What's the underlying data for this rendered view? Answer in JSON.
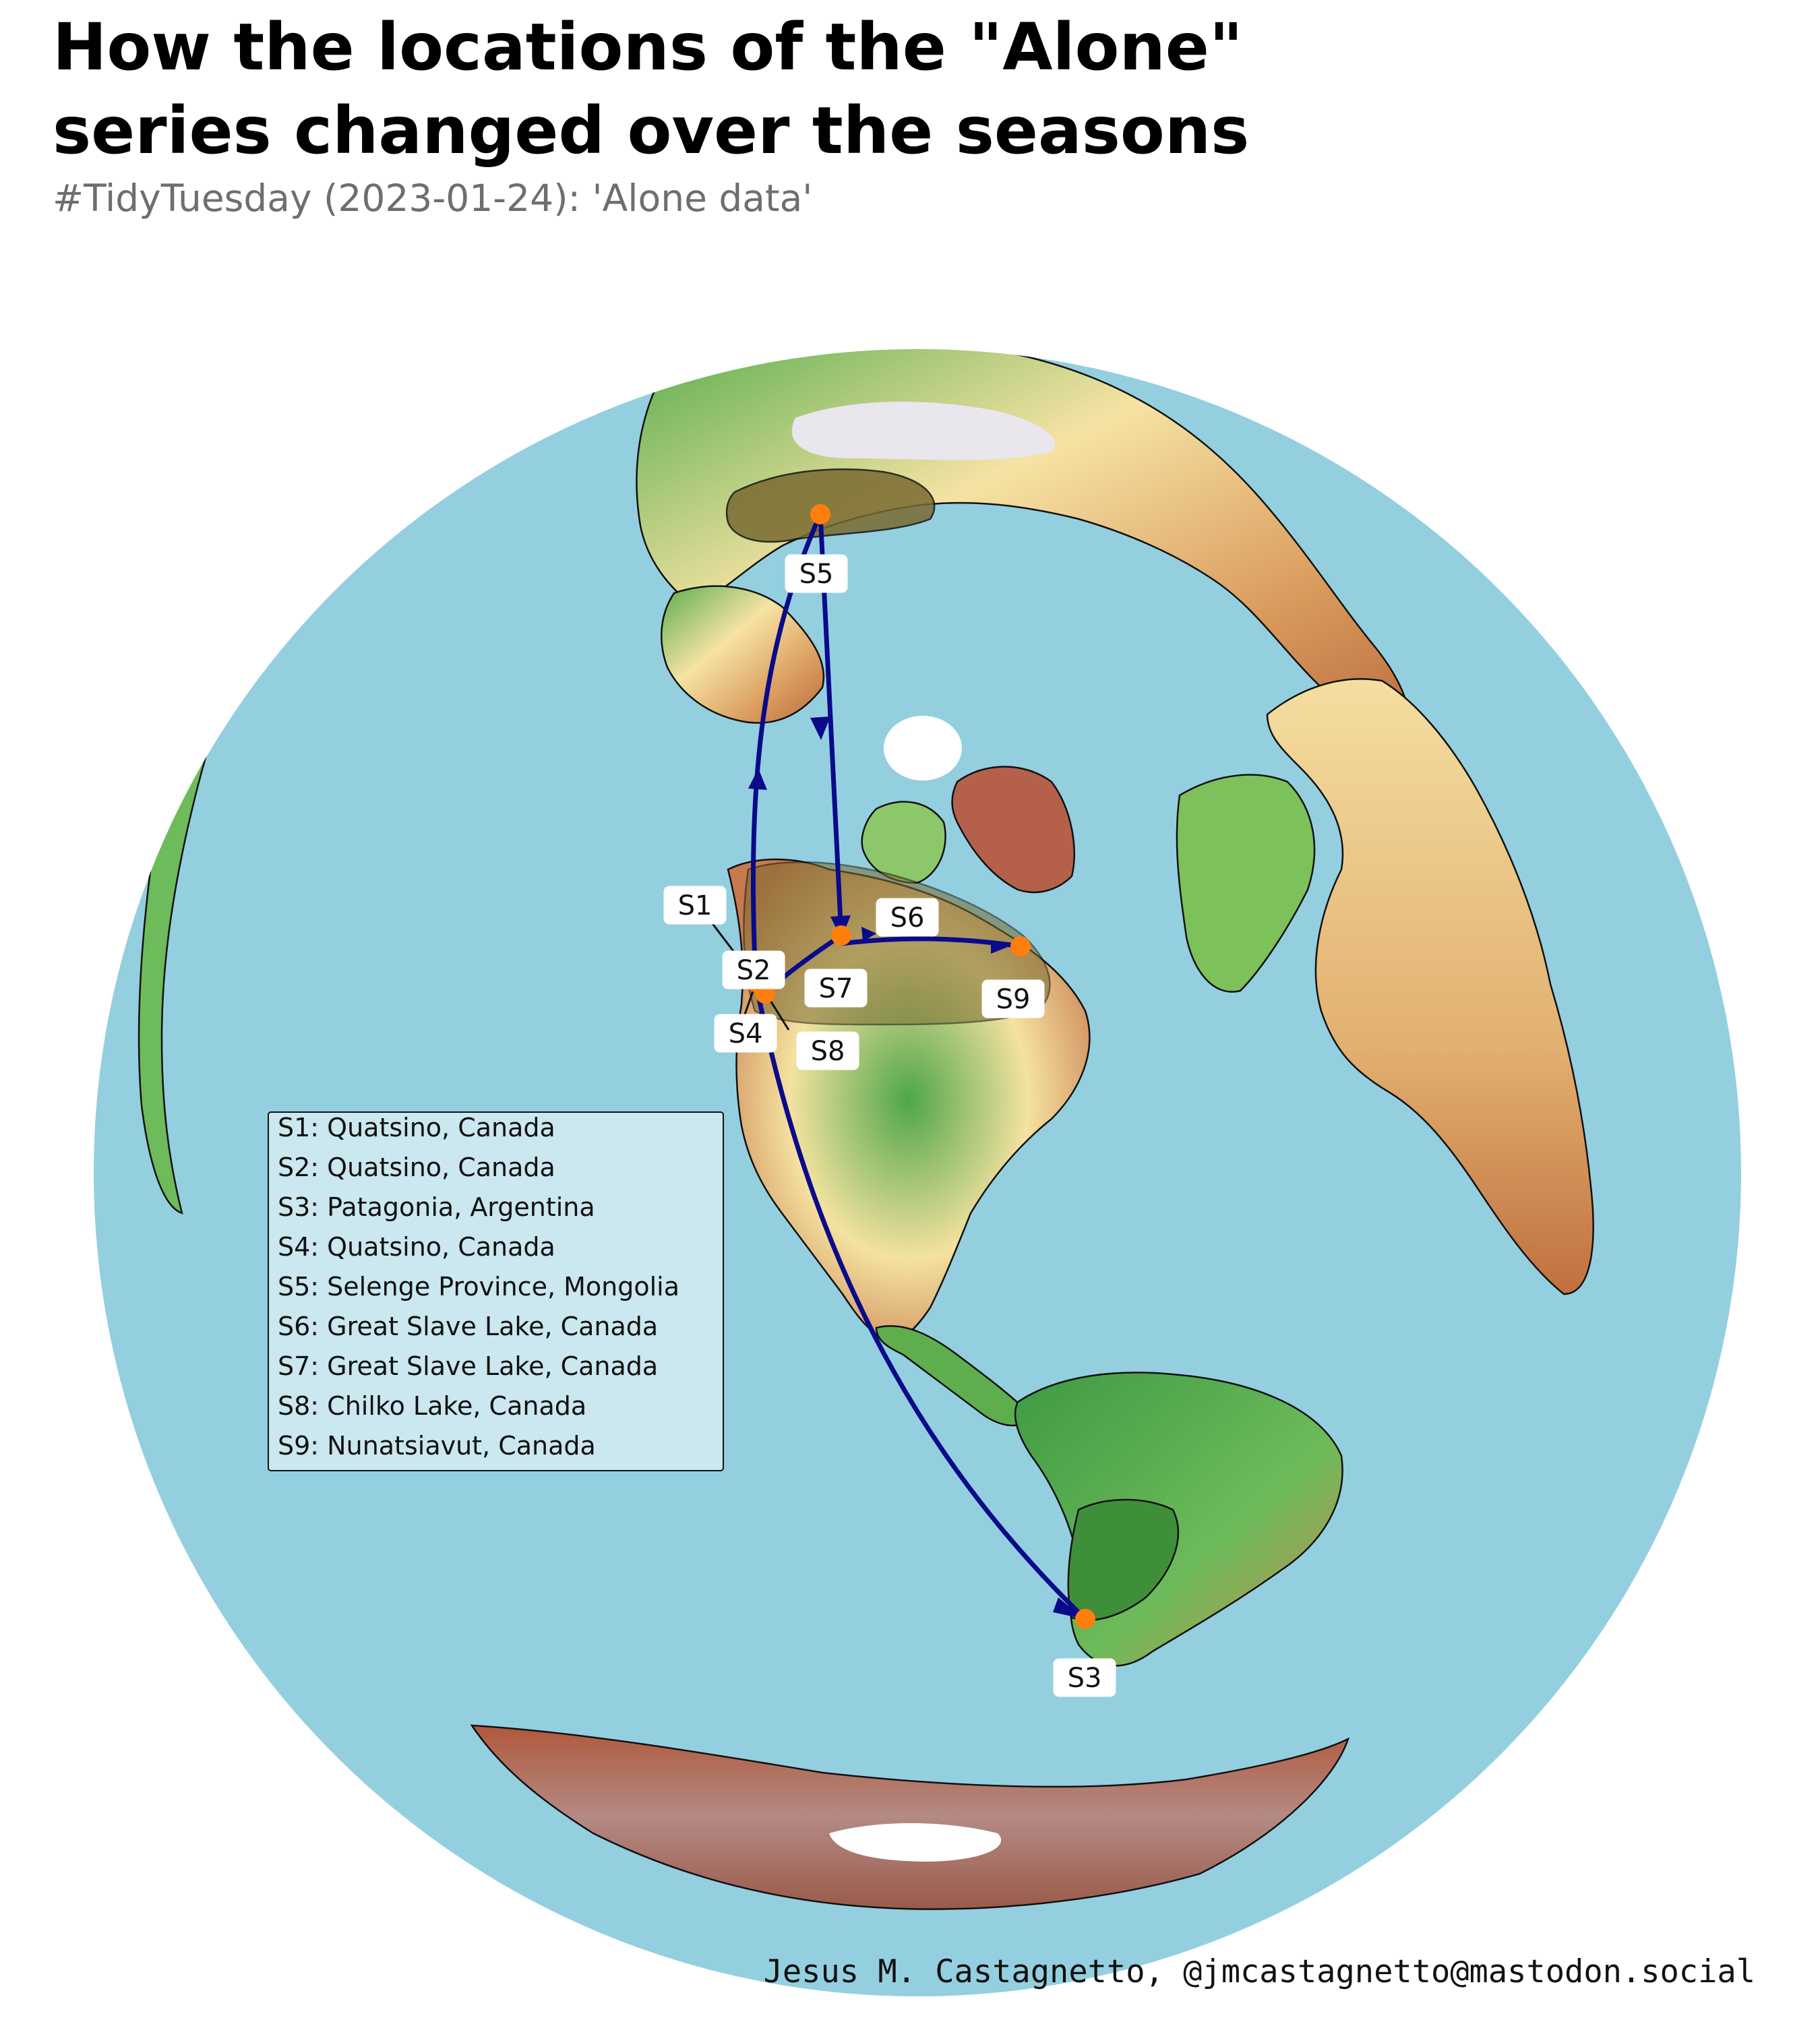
{
  "title": {
    "line1": "How the locations of the \"Alone\"",
    "line2": "series changed over the seasons"
  },
  "subtitle": "#TidyTuesday (2023-01-24): 'Alone data'",
  "caption": "Jesus M. Castagnetto, @jmcastagnetto@mastodon.social",
  "colors": {
    "ocean": "#94cfe0",
    "route": "#0a0a8a",
    "site_point": "#ff7f0e",
    "highlight_country": "#7a6a30",
    "land_low": "#4fa64a",
    "land_mid": "#f7e7a8",
    "land_high": "#b05a3a",
    "legend_bg": "#cbe7ef"
  },
  "map": {
    "projection": "azimuthal equidistant (north-polar oblique)",
    "highlighted_countries": [
      "Mongolia",
      "Canada",
      "Argentina"
    ]
  },
  "sites": [
    {
      "code": "S1",
      "location": "Quatsino, Canada",
      "lat": 50.5,
      "lon": -127.6
    },
    {
      "code": "S2",
      "location": "Quatsino, Canada",
      "lat": 50.5,
      "lon": -127.6
    },
    {
      "code": "S3",
      "location": "Patagonia, Argentina",
      "lat": -50.3,
      "lon": -72.3
    },
    {
      "code": "S4",
      "location": "Quatsino, Canada",
      "lat": 50.5,
      "lon": -127.6
    },
    {
      "code": "S5",
      "location": "Selenge Province, Mongolia",
      "lat": 49.6,
      "lon": 106.3
    },
    {
      "code": "S6",
      "location": "Great Slave Lake, Canada",
      "lat": 61.5,
      "lon": -114.3
    },
    {
      "code": "S7",
      "location": "Great Slave Lake, Canada",
      "lat": 61.5,
      "lon": -114.3
    },
    {
      "code": "S8",
      "location": "Chilko Lake, Canada",
      "lat": 51.3,
      "lon": -124.1
    },
    {
      "code": "S9",
      "location": "Nunatsiavut, Canada",
      "lat": 56.5,
      "lon": -61.7
    }
  ],
  "legend": {
    "items": [
      "S1: Quatsino, Canada",
      "S2: Quatsino, Canada",
      "S3: Patagonia, Argentina",
      "S4: Quatsino, Canada",
      "S5: Selenge Province, Mongolia",
      "S6: Great Slave Lake, Canada",
      "S7: Great Slave Lake, Canada",
      "S8: Chilko Lake, Canada",
      "S9: Nunatsiavut, Canada"
    ]
  },
  "routes": [
    {
      "from": "S2",
      "to": "S3"
    },
    {
      "from": "S4",
      "to": "S5"
    },
    {
      "from": "S5",
      "to": "S6"
    },
    {
      "from": "S7",
      "to": "S8"
    },
    {
      "from": "S8",
      "to": "S9"
    }
  ]
}
